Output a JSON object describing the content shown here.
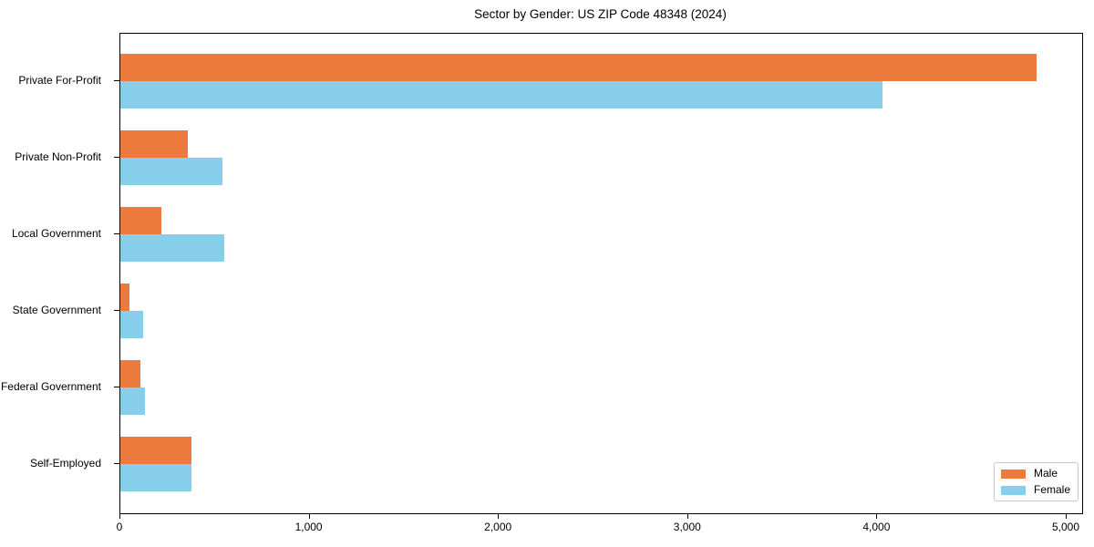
{
  "chart_data": {
    "type": "bar",
    "orientation": "horizontal",
    "title": "Sector by Gender: US ZIP Code 48348 (2024)",
    "categories": [
      "Private For-Profit",
      "Private Non-Profit",
      "Local Government",
      "State Government",
      "Federal Government",
      "Self-Employed"
    ],
    "series": [
      {
        "name": "Male",
        "color": "#ec7a3d",
        "values": [
          4840,
          355,
          215,
          50,
          105,
          375
        ]
      },
      {
        "name": "Female",
        "color": "#87ceeb",
        "values": [
          4025,
          540,
          550,
          120,
          130,
          375
        ]
      }
    ],
    "xlabel": "",
    "ylabel": "",
    "xlim": [
      0,
      5082
    ],
    "x_ticks": [
      0,
      1000,
      2000,
      3000,
      4000,
      5000
    ],
    "x_tick_labels": [
      "0",
      "1,000",
      "2,000",
      "3,000",
      "4,000",
      "5,000"
    ],
    "grid": false,
    "legend": {
      "position": "lower right",
      "entries": [
        "Male",
        "Female"
      ]
    }
  }
}
